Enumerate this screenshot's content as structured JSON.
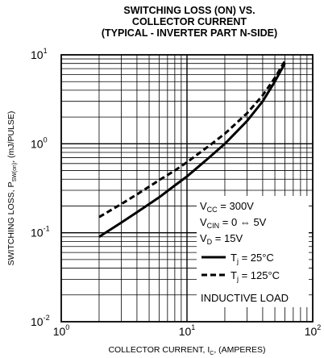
{
  "chart_data": {
    "type": "line",
    "title": [
      "SWITCHING LOSS (ON) VS.",
      "COLLECTOR CURRENT",
      "(TYPICAL - INVERTER PART N-SIDE)"
    ],
    "xlabel": "COLLECTOR CURRENT, I_C, (AMPERES)",
    "ylabel": "SWITCHING LOSS, P_SW(on), (mJ/PULSE)",
    "x_scale": "log",
    "y_scale": "log",
    "xlim": [
      1,
      100
    ],
    "ylim": [
      0.01,
      10
    ],
    "x_ticks": [
      {
        "base": "10",
        "exp": "0"
      },
      {
        "base": "10",
        "exp": "1"
      },
      {
        "base": "10",
        "exp": "2"
      }
    ],
    "y_ticks": [
      {
        "base": "10",
        "exp": "-2"
      },
      {
        "base": "10",
        "exp": "-1"
      },
      {
        "base": "10",
        "exp": "0"
      },
      {
        "base": "10",
        "exp": "1"
      }
    ],
    "grid": true,
    "legend_position": "bottom-right",
    "conditions": [
      [
        [
          "V",
          "normal"
        ],
        [
          "CC",
          "sub"
        ],
        [
          " = 300V",
          "normal"
        ]
      ],
      [
        [
          "V",
          "normal"
        ],
        [
          "CIN",
          "sub"
        ],
        [
          " = 0 ⇔ 5V",
          "normal"
        ]
      ],
      [
        [
          "V",
          "normal"
        ],
        [
          "D",
          "sub"
        ],
        [
          " = 15V",
          "normal"
        ]
      ]
    ],
    "series": [
      {
        "name": "T_j = 25°C",
        "label": [
          [
            "T",
            "normal"
          ],
          [
            "j",
            "sub"
          ],
          [
            " = 25°C",
            "normal"
          ]
        ],
        "style": "solid",
        "x": [
          2,
          3,
          4,
          5,
          6,
          8,
          10,
          15,
          20,
          30,
          40,
          50,
          60
        ],
        "y": [
          0.09,
          0.13,
          0.17,
          0.21,
          0.25,
          0.34,
          0.43,
          0.7,
          1.0,
          1.8,
          3.0,
          5.0,
          8.0
        ]
      },
      {
        "name": "T_j = 125°C",
        "label": [
          [
            "T",
            "normal"
          ],
          [
            "j",
            "sub"
          ],
          [
            " = 125°C",
            "normal"
          ]
        ],
        "style": "dashed",
        "x": [
          2,
          3,
          4,
          5,
          6,
          8,
          10,
          15,
          20,
          30,
          40,
          50,
          60
        ],
        "y": [
          0.15,
          0.21,
          0.27,
          0.33,
          0.39,
          0.5,
          0.62,
          0.95,
          1.3,
          2.2,
          3.5,
          5.5,
          8.5
        ]
      }
    ],
    "annotation": "INDUCTIVE LOAD"
  }
}
